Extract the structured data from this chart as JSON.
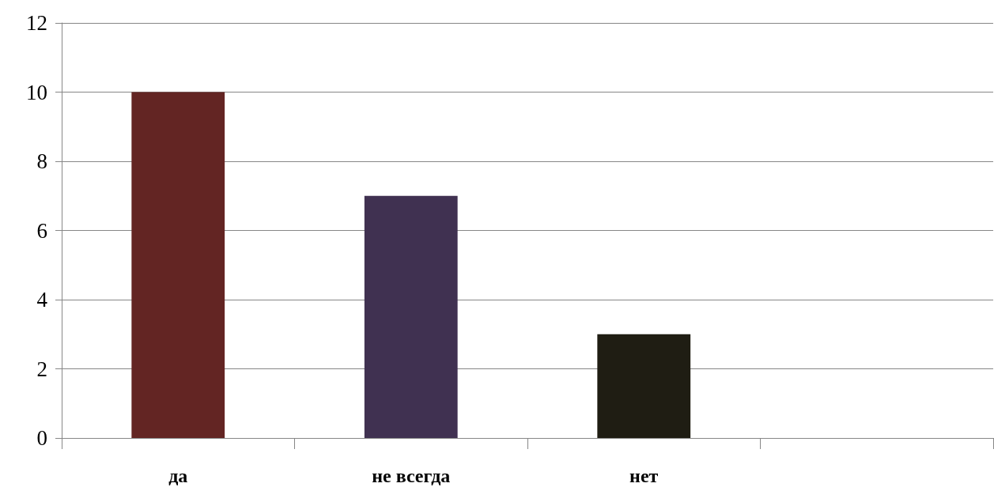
{
  "chart_data": {
    "type": "bar",
    "categories": [
      "да",
      "не всегда",
      "нет",
      null
    ],
    "values": [
      10,
      7,
      3,
      null
    ],
    "colors": [
      "#632523",
      "#403151",
      "#1f1d13",
      null
    ],
    "ylim": [
      0,
      12
    ],
    "yticks": [
      0,
      2,
      4,
      6,
      8,
      10,
      12
    ],
    "grid": "y"
  }
}
